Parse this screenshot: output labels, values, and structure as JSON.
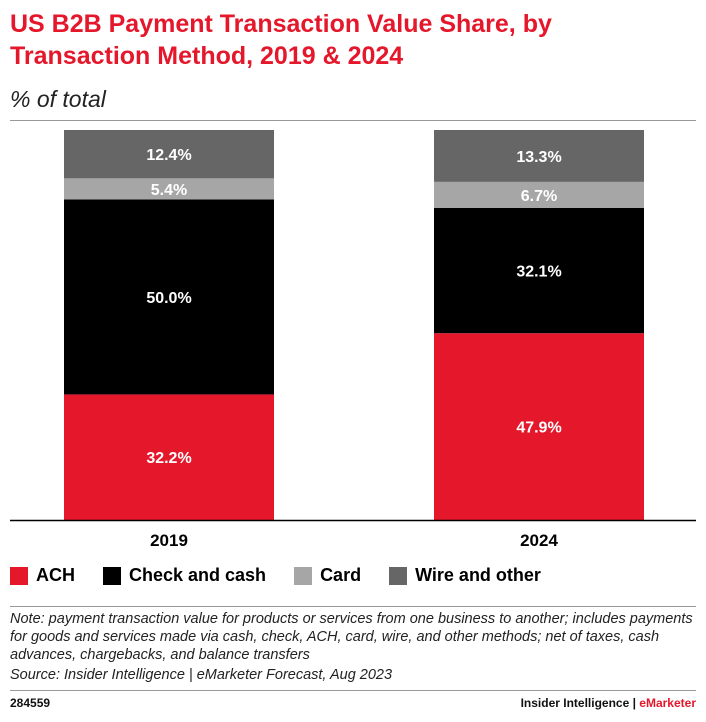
{
  "chart_data": {
    "type": "bar",
    "stacked": true,
    "title": "US B2B Payment Transaction Value Share, by Transaction Method, 2019 & 2024",
    "subtitle": "% of total",
    "categories": [
      "2019",
      "2024"
    ],
    "series": [
      {
        "name": "ACH",
        "color": "#e4172b",
        "values": [
          32.2,
          47.9
        ],
        "labels": [
          "32.2%",
          "47.9%"
        ]
      },
      {
        "name": "Check and cash",
        "color": "#000000",
        "values": [
          50.0,
          32.1
        ],
        "labels": [
          "50.0%",
          "32.1%"
        ]
      },
      {
        "name": "Card",
        "color": "#a6a6a6",
        "values": [
          5.4,
          6.7
        ],
        "labels": [
          "5.4%",
          "6.7%"
        ]
      },
      {
        "name": "Wire and other",
        "color": "#666666",
        "values": [
          12.4,
          13.3
        ],
        "labels": [
          "12.4%",
          "13.3%"
        ]
      }
    ],
    "xlabel": "",
    "ylabel": "",
    "ylim": [
      0,
      100
    ],
    "grid": false,
    "legend_position": "bottom"
  },
  "note": "Note: payment transaction value for products or services from one business to another; includes payments for goods and services made via cash, check, ACH, card, wire, and other methods; net of taxes, cash advances, chargebacks, and balance transfers",
  "source": "Source: Insider Intelligence | eMarketer Forecast, Aug 2023",
  "footer": {
    "id": "284559",
    "brand_main": "Insider Intelligence | ",
    "brand_accent": "eMarketer"
  }
}
